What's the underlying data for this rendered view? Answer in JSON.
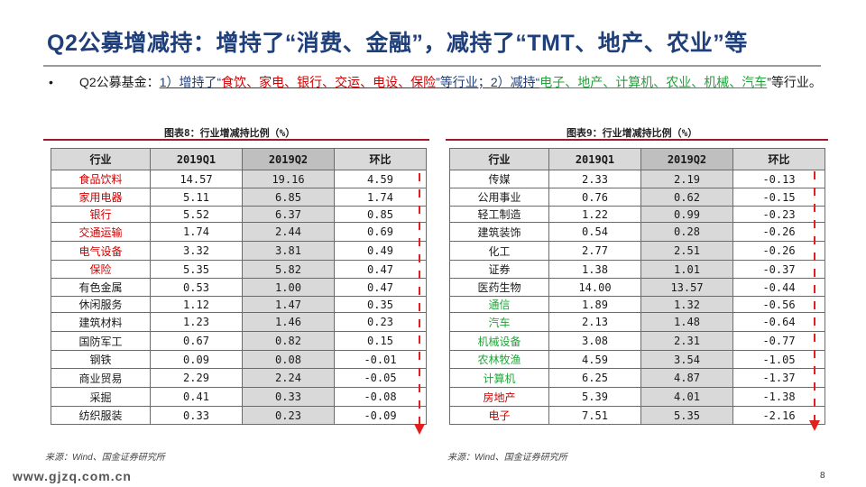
{
  "title": "Q2公募增减持：增持了“消费、金融”，减持了“TMT、地产、农业”等",
  "bullet": {
    "marker": "•",
    "prefix": "Q2公募基金：",
    "part1_label": "1）增持了“",
    "part1_items": "食饮、家电、银行、交运、电设、保险",
    "part1_suffix": "”等行业；",
    "part2_label": "2）减持“",
    "part2_items": "电子、地产、计算机、农业、机械、汽车",
    "part2_suffix": "”等行业。"
  },
  "left_chart": {
    "caption": "图表8：行业增减持比例（%）",
    "headers": [
      "行业",
      "2019Q1",
      "2019Q2",
      "环比"
    ],
    "rows": [
      {
        "industry": "食品饮料",
        "q1": "14.57",
        "q2": "19.16",
        "change": "4.59",
        "color": "red"
      },
      {
        "industry": "家用电器",
        "q1": "5.11",
        "q2": "6.85",
        "change": "1.74",
        "color": "red"
      },
      {
        "industry": "银行",
        "q1": "5.52",
        "q2": "6.37",
        "change": "0.85",
        "color": "red"
      },
      {
        "industry": "交通运输",
        "q1": "1.74",
        "q2": "2.44",
        "change": "0.69",
        "color": "red"
      },
      {
        "industry": "电气设备",
        "q1": "3.32",
        "q2": "3.81",
        "change": "0.49",
        "color": "red"
      },
      {
        "industry": "保险",
        "q1": "5.35",
        "q2": "5.82",
        "change": "0.47",
        "color": "red"
      },
      {
        "industry": "有色金属",
        "q1": "0.53",
        "q2": "1.00",
        "change": "0.47",
        "color": "black"
      },
      {
        "industry": "休闲服务",
        "q1": "1.12",
        "q2": "1.47",
        "change": "0.35",
        "color": "black"
      },
      {
        "industry": "建筑材料",
        "q1": "1.23",
        "q2": "1.46",
        "change": "0.23",
        "color": "black"
      },
      {
        "industry": "国防军工",
        "q1": "0.67",
        "q2": "0.82",
        "change": "0.15",
        "color": "black"
      },
      {
        "industry": "钢铁",
        "q1": "0.09",
        "q2": "0.08",
        "change": "-0.01",
        "color": "black"
      },
      {
        "industry": "商业贸易",
        "q1": "2.29",
        "q2": "2.24",
        "change": "-0.05",
        "color": "black"
      },
      {
        "industry": "采掘",
        "q1": "0.41",
        "q2": "0.33",
        "change": "-0.08",
        "color": "black"
      },
      {
        "industry": "纺织服装",
        "q1": "0.33",
        "q2": "0.23",
        "change": "-0.09",
        "color": "black"
      }
    ],
    "source": "来源：Wind、国金证券研究所"
  },
  "right_chart": {
    "caption": "图表9：行业增减持比例（%）",
    "headers": [
      "行业",
      "2019Q1",
      "2019Q2",
      "环比"
    ],
    "rows": [
      {
        "industry": "传媒",
        "q1": "2.33",
        "q2": "2.19",
        "change": "-0.13",
        "color": "black"
      },
      {
        "industry": "公用事业",
        "q1": "0.76",
        "q2": "0.62",
        "change": "-0.15",
        "color": "black"
      },
      {
        "industry": "轻工制造",
        "q1": "1.22",
        "q2": "0.99",
        "change": "-0.23",
        "color": "black"
      },
      {
        "industry": "建筑装饰",
        "q1": "0.54",
        "q2": "0.28",
        "change": "-0.26",
        "color": "black"
      },
      {
        "industry": "化工",
        "q1": "2.77",
        "q2": "2.51",
        "change": "-0.26",
        "color": "black"
      },
      {
        "industry": "证券",
        "q1": "1.38",
        "q2": "1.01",
        "change": "-0.37",
        "color": "black"
      },
      {
        "industry": "医药生物",
        "q1": "14.00",
        "q2": "13.57",
        "change": "-0.44",
        "color": "black"
      },
      {
        "industry": "通信",
        "q1": "1.89",
        "q2": "1.32",
        "change": "-0.56",
        "color": "green"
      },
      {
        "industry": "汽车",
        "q1": "2.13",
        "q2": "1.48",
        "change": "-0.64",
        "color": "green"
      },
      {
        "industry": "机械设备",
        "q1": "3.08",
        "q2": "2.31",
        "change": "-0.77",
        "color": "green"
      },
      {
        "industry": "农林牧渔",
        "q1": "4.59",
        "q2": "3.54",
        "change": "-1.05",
        "color": "green"
      },
      {
        "industry": "计算机",
        "q1": "6.25",
        "q2": "4.87",
        "change": "-1.37",
        "color": "green"
      },
      {
        "industry": "房地产",
        "q1": "5.39",
        "q2": "4.01",
        "change": "-1.38",
        "color": "red"
      },
      {
        "industry": "电子",
        "q1": "7.51",
        "q2": "5.35",
        "change": "-2.16",
        "color": "red"
      }
    ],
    "source": "来源：Wind、国金证券研究所"
  },
  "footer": {
    "url": "www.gjzq.com.cn",
    "page": "8"
  },
  "colors": {
    "title_blue": "#1f3f7a",
    "highlight_red": "#d00000",
    "highlight_green": "#22a33a",
    "header_gray": "#d9d9d9",
    "accent_rule": "#a0192e"
  }
}
